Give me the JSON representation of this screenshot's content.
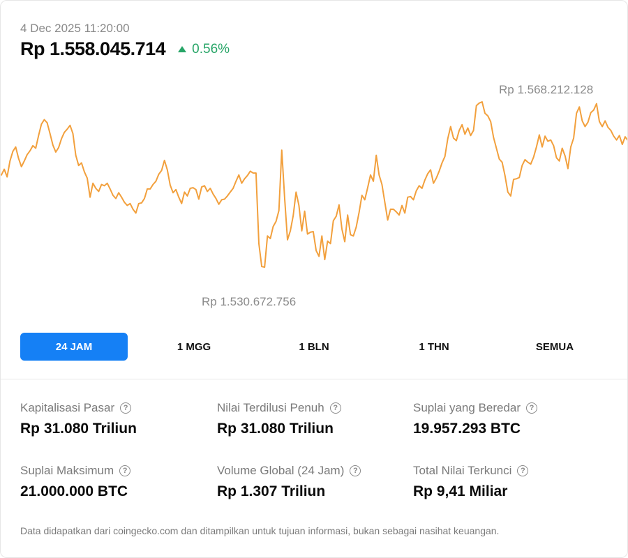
{
  "header": {
    "timestamp": "4 Dec 2025 11:20:00",
    "price": "Rp 1.558.045.714",
    "change": "0.56%",
    "change_direction": "up",
    "change_color": "#27a567"
  },
  "chart_data": {
    "type": "line",
    "series_color": "#f2a03d",
    "high_label": "Rp 1.568.212.128",
    "low_label": "Rp 1.530.672.756",
    "values": [
      1545.6,
      1546.5,
      1545.3,
      1547.8,
      1549.3,
      1550.0,
      1548.2,
      1546.9,
      1547.8,
      1548.8,
      1549.4,
      1550.2,
      1549.8,
      1551.8,
      1553.6,
      1554.3,
      1553.8,
      1552.1,
      1550.3,
      1549.2,
      1549.9,
      1551.3,
      1552.3,
      1552.8,
      1553.4,
      1552.1,
      1548.7,
      1547.1,
      1547.5,
      1546.1,
      1545.1,
      1542.1,
      1544.3,
      1543.5,
      1543.0,
      1544.1,
      1543.9,
      1544.3,
      1543.4,
      1542.4,
      1541.9,
      1542.8,
      1542.1,
      1541.3,
      1540.8,
      1541.1,
      1540.2,
      1539.6,
      1541.1,
      1541.2,
      1541.9,
      1543.4,
      1543.4,
      1544.1,
      1544.6,
      1545.7,
      1546.3,
      1547.9,
      1546.4,
      1544.0,
      1542.8,
      1543.3,
      1542.1,
      1541.1,
      1542.9,
      1542.3,
      1543.5,
      1543.6,
      1543.3,
      1541.8,
      1543.7,
      1543.9,
      1543.0,
      1543.5,
      1542.6,
      1541.9,
      1541.0,
      1541.7,
      1541.8,
      1542.3,
      1542.9,
      1543.5,
      1544.6,
      1545.6,
      1544.3,
      1545.0,
      1545.5,
      1546.2,
      1545.9,
      1545.9,
      1534.8,
      1531.2,
      1531.1,
      1536.0,
      1535.6,
      1537.5,
      1538.3,
      1540.0,
      1549.5,
      1542.0,
      1535.4,
      1536.8,
      1539.2,
      1542.9,
      1540.8,
      1536.8,
      1539.9,
      1536.3,
      1536.6,
      1536.7,
      1533.7,
      1532.8,
      1536.0,
      1532.3,
      1535.2,
      1534.8,
      1538.4,
      1539.1,
      1540.9,
      1537.1,
      1535.1,
      1539.3,
      1536.2,
      1536.0,
      1537.4,
      1539.7,
      1542.4,
      1541.7,
      1543.6,
      1545.6,
      1544.6,
      1548.7,
      1545.6,
      1544.1,
      1541.3,
      1538.5,
      1540.2,
      1540.2,
      1539.8,
      1539.3,
      1540.8,
      1539.6,
      1542.1,
      1542.2,
      1541.7,
      1543.1,
      1543.9,
      1543.5,
      1544.8,
      1545.8,
      1546.4,
      1544.3,
      1545.1,
      1546.2,
      1547.5,
      1548.5,
      1551.3,
      1553.2,
      1551.4,
      1551.0,
      1552.6,
      1553.5,
      1552.0,
      1553.0,
      1551.8,
      1552.6,
      1556.5,
      1556.9,
      1557.1,
      1555.3,
      1554.9,
      1554.0,
      1551.5,
      1549.8,
      1548.1,
      1547.6,
      1545.5,
      1542.9,
      1542.3,
      1544.9,
      1545.0,
      1545.2,
      1547.1,
      1548.0,
      1547.6,
      1547.3,
      1548.4,
      1550.0,
      1551.9,
      1550.0,
      1551.7,
      1550.9,
      1551.1,
      1550.2,
      1548.3,
      1547.8,
      1549.8,
      1548.6,
      1546.6,
      1550.0,
      1551.4,
      1555.3,
      1556.3,
      1554.1,
      1553.2,
      1553.9,
      1555.4,
      1555.8,
      1556.8,
      1554.0,
      1553.2,
      1554.1,
      1553.1,
      1552.6,
      1551.7,
      1551.1,
      1551.8,
      1550.4,
      1551.6,
      1551.0
    ]
  },
  "tabs": [
    {
      "label": "24 JAM",
      "active": true
    },
    {
      "label": "1 MGG",
      "active": false
    },
    {
      "label": "1 BLN",
      "active": false
    },
    {
      "label": "1 THN",
      "active": false
    },
    {
      "label": "SEMUA",
      "active": false
    }
  ],
  "stats": [
    {
      "label": "Kapitalisasi Pasar",
      "value": "Rp 31.080 Triliun"
    },
    {
      "label": "Nilai Terdilusi Penuh",
      "value": "Rp 31.080 Triliun"
    },
    {
      "label": "Suplai yang Beredar",
      "value": "19.957.293 BTC"
    },
    {
      "label": "Suplai Maksimum",
      "value": "21.000.000 BTC"
    },
    {
      "label": "Volume Global (24 Jam)",
      "value": "Rp 1.307 Triliun"
    },
    {
      "label": "Total Nilai Terkunci",
      "value": "Rp 9,41 Miliar"
    }
  ],
  "help_icon_glyph": "?",
  "accent_color": "#1580f5",
  "disclaimer": "Data didapatkan dari coingecko.com dan ditampilkan untuk tujuan informasi, bukan sebagai nasihat keuangan."
}
